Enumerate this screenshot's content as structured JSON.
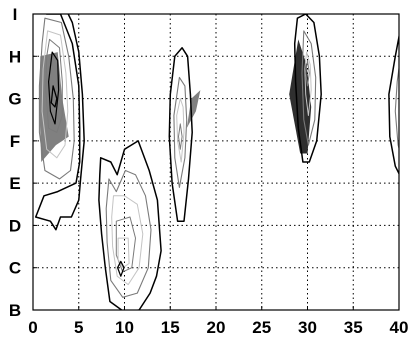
{
  "chart_data": {
    "type": "contour",
    "title": "",
    "xlabel": "",
    "ylabel": "",
    "xlim": [
      0,
      40
    ],
    "ylim": [
      "B",
      "I"
    ],
    "grid": true,
    "colors": {
      "outer": "#000000",
      "mid": "#7a7a7a",
      "light": "#c4c4c4",
      "fill_mid": "#808080",
      "fill_dark": "#2f2f2f"
    },
    "x_ticks": [
      {
        "value": 0,
        "label": "0"
      },
      {
        "value": 5,
        "label": "5"
      },
      {
        "value": 10,
        "label": "10"
      },
      {
        "value": 15,
        "label": "15"
      },
      {
        "value": 20,
        "label": "20"
      },
      {
        "value": 25,
        "label": "25"
      },
      {
        "value": 30,
        "label": "30"
      },
      {
        "value": 35,
        "label": "35"
      },
      {
        "value": 40,
        "label": "40"
      }
    ],
    "y_ticks": [
      {
        "value": 0,
        "label": "B"
      },
      {
        "value": 1,
        "label": "C"
      },
      {
        "value": 2,
        "label": "D"
      },
      {
        "value": 3,
        "label": "E"
      },
      {
        "value": 4,
        "label": "F"
      },
      {
        "value": 5,
        "label": "G"
      },
      {
        "value": 6,
        "label": "H"
      },
      {
        "value": 7,
        "label": "I"
      }
    ],
    "fills": [
      {
        "name": "region-1-fill",
        "tone": "fill_mid",
        "points": [
          [
            0.8,
            6.0
          ],
          [
            2.7,
            6.1
          ],
          [
            3.2,
            5.0
          ],
          [
            3.9,
            4.1
          ],
          [
            2.5,
            3.9
          ],
          [
            0.9,
            3.5
          ],
          [
            0.7,
            4.8
          ]
        ]
      },
      {
        "name": "region-2-fill",
        "tone": "fill_mid",
        "points": [
          [
            17.3,
            5.0
          ],
          [
            18.3,
            5.2
          ],
          [
            17.8,
            4.7
          ],
          [
            16.8,
            4.3
          ]
        ]
      },
      {
        "name": "region-3-fill",
        "tone": "fill_dark",
        "points": [
          [
            29.0,
            6.4
          ],
          [
            29.9,
            5.8
          ],
          [
            30.4,
            4.8
          ],
          [
            30.0,
            3.7
          ],
          [
            29.2,
            3.7
          ],
          [
            28.0,
            5.1
          ]
        ]
      }
    ],
    "contours": [
      {
        "name": "region-1-outer",
        "tone": "outer",
        "width": 1.5,
        "points": [
          [
            1.5,
            7.0
          ],
          [
            3.0,
            7.0
          ],
          [
            4.3,
            6.3
          ],
          [
            5.0,
            5.3
          ],
          [
            5.1,
            4.3
          ],
          [
            5.1,
            3.5
          ],
          [
            4.7,
            3.0
          ],
          [
            2.7,
            2.8
          ],
          [
            1.2,
            2.7
          ],
          [
            0.3,
            2.2
          ],
          [
            1.9,
            2.1
          ],
          [
            2.5,
            1.9
          ],
          [
            3.0,
            2.2
          ],
          [
            4.2,
            2.2
          ],
          [
            5.0,
            2.6
          ],
          [
            5.2,
            3.1
          ],
          [
            5.6,
            4.0
          ],
          [
            5.4,
            5.1
          ],
          [
            5.0,
            6.1
          ],
          [
            4.3,
            6.8
          ],
          [
            3.4,
            7.2
          ]
        ]
      },
      {
        "name": "region-1-mid-1",
        "tone": "mid",
        "width": 1.1,
        "points": [
          [
            1.3,
            6.9
          ],
          [
            3.1,
            6.8
          ],
          [
            3.9,
            6.0
          ],
          [
            4.4,
            5.0
          ],
          [
            4.5,
            4.0
          ],
          [
            4.1,
            3.3
          ],
          [
            2.9,
            3.1
          ],
          [
            1.3,
            3.3
          ],
          [
            0.7,
            4.2
          ],
          [
            0.7,
            5.3
          ],
          [
            1.0,
            6.3
          ]
        ]
      },
      {
        "name": "region-1-light-1",
        "tone": "light",
        "width": 1.0,
        "points": [
          [
            1.6,
            6.6
          ],
          [
            3.0,
            6.5
          ],
          [
            3.6,
            5.6
          ],
          [
            3.8,
            4.7
          ],
          [
            3.5,
            3.9
          ],
          [
            2.6,
            3.6
          ],
          [
            1.5,
            3.8
          ],
          [
            1.0,
            4.7
          ],
          [
            1.1,
            5.7
          ]
        ]
      },
      {
        "name": "region-1-mid-2",
        "tone": "mid",
        "width": 1.0,
        "points": [
          [
            1.8,
            6.4
          ],
          [
            2.9,
            6.2
          ],
          [
            3.2,
            5.4
          ],
          [
            3.2,
            4.6
          ],
          [
            2.6,
            4.2
          ],
          [
            1.7,
            4.3
          ],
          [
            1.4,
            5.2
          ],
          [
            1.5,
            6.0
          ]
        ]
      },
      {
        "name": "region-1-inner",
        "tone": "outer",
        "width": 1.2,
        "points": [
          [
            2.1,
            6.1
          ],
          [
            2.7,
            5.9
          ],
          [
            2.8,
            5.2
          ],
          [
            2.4,
            4.4
          ],
          [
            1.9,
            4.7
          ],
          [
            1.7,
            5.4
          ]
        ]
      },
      {
        "name": "region-1-core",
        "tone": "outer",
        "width": 1.3,
        "points": [
          [
            2.2,
            5.3
          ],
          [
            2.6,
            5.0
          ],
          [
            2.4,
            4.8
          ],
          [
            2.0,
            4.9
          ]
        ]
      },
      {
        "name": "region-2-outer",
        "tone": "outer",
        "width": 1.5,
        "points": [
          [
            7.4,
            3.6
          ],
          [
            8.5,
            3.5
          ],
          [
            9.2,
            3.2
          ],
          [
            10.0,
            3.8
          ],
          [
            11.5,
            4.0
          ],
          [
            12.7,
            3.3
          ],
          [
            13.6,
            2.6
          ],
          [
            14.0,
            1.4
          ],
          [
            13.5,
            0.8
          ],
          [
            12.8,
            0.4
          ],
          [
            11.6,
            0.0
          ],
          [
            10.0,
            -0.05
          ],
          [
            8.4,
            0.2
          ],
          [
            7.9,
            1.0
          ],
          [
            7.5,
            1.8
          ],
          [
            7.2,
            2.6
          ],
          [
            7.3,
            3.2
          ]
        ]
      },
      {
        "name": "region-2-mid-1",
        "tone": "mid",
        "width": 1.1,
        "points": [
          [
            8.3,
            3.1
          ],
          [
            9.1,
            2.8
          ],
          [
            10.1,
            3.3
          ],
          [
            11.2,
            3.2
          ],
          [
            12.3,
            2.7
          ],
          [
            12.9,
            1.9
          ],
          [
            12.6,
            1.0
          ],
          [
            11.4,
            0.4
          ],
          [
            9.8,
            0.3
          ],
          [
            8.5,
            0.7
          ],
          [
            8.1,
            1.6
          ],
          [
            8.0,
            2.4
          ]
        ]
      },
      {
        "name": "region-2-light-1",
        "tone": "light",
        "width": 1.0,
        "points": [
          [
            8.8,
            2.7
          ],
          [
            10.0,
            2.7
          ],
          [
            11.4,
            2.5
          ],
          [
            12.0,
            1.8
          ],
          [
            11.6,
            1.0
          ],
          [
            10.4,
            0.6
          ],
          [
            9.2,
            0.8
          ],
          [
            8.7,
            1.5
          ],
          [
            8.6,
            2.2
          ]
        ]
      },
      {
        "name": "region-2-mid-2",
        "tone": "mid",
        "width": 1.0,
        "points": [
          [
            9.1,
            2.1
          ],
          [
            10.6,
            2.2
          ],
          [
            11.2,
            1.7
          ],
          [
            10.8,
            1.0
          ],
          [
            9.8,
            0.9
          ],
          [
            9.1,
            1.3
          ]
        ]
      },
      {
        "name": "region-2-light-2",
        "tone": "light",
        "width": 1.0,
        "points": [
          [
            9.3,
            1.7
          ],
          [
            10.4,
            1.7
          ],
          [
            10.5,
            1.1
          ],
          [
            9.8,
            1.0
          ],
          [
            9.3,
            1.2
          ]
        ]
      },
      {
        "name": "region-2-core",
        "tone": "outer",
        "width": 1.3,
        "points": [
          [
            9.6,
            1.15
          ],
          [
            9.95,
            1.0
          ],
          [
            9.6,
            0.8
          ],
          [
            9.25,
            1.0
          ]
        ]
      },
      {
        "name": "region-3-outer",
        "tone": "outer",
        "width": 1.5,
        "points": [
          [
            15.5,
            6.0
          ],
          [
            16.3,
            6.2
          ],
          [
            16.9,
            6.0
          ],
          [
            17.2,
            5.1
          ],
          [
            17.4,
            4.2
          ],
          [
            17.0,
            3.1
          ],
          [
            16.5,
            2.1
          ],
          [
            15.8,
            2.1
          ],
          [
            15.2,
            3.0
          ],
          [
            14.9,
            4.1
          ],
          [
            15.0,
            5.1
          ]
        ]
      },
      {
        "name": "region-3-mid-1",
        "tone": "mid",
        "width": 1.1,
        "points": [
          [
            16.0,
            5.5
          ],
          [
            16.6,
            5.3
          ],
          [
            16.8,
            4.5
          ],
          [
            16.6,
            3.6
          ],
          [
            16.0,
            2.9
          ],
          [
            15.5,
            3.6
          ],
          [
            15.4,
            4.6
          ]
        ]
      },
      {
        "name": "region-3-light-1",
        "tone": "light",
        "width": 1.0,
        "points": [
          [
            16.1,
            5.0
          ],
          [
            16.4,
            4.8
          ],
          [
            16.5,
            4.2
          ],
          [
            16.2,
            3.5
          ],
          [
            15.8,
            4.0
          ],
          [
            15.7,
            4.6
          ]
        ]
      },
      {
        "name": "region-3-core",
        "tone": "mid",
        "width": 1.0,
        "points": [
          [
            16.1,
            4.4
          ],
          [
            16.3,
            4.1
          ],
          [
            16.1,
            3.8
          ],
          [
            15.9,
            4.1
          ]
        ]
      },
      {
        "name": "region-4-outer",
        "tone": "outer",
        "width": 1.5,
        "points": [
          [
            28.9,
            6.9
          ],
          [
            29.8,
            7.0
          ],
          [
            30.7,
            6.8
          ],
          [
            31.3,
            6.0
          ],
          [
            31.5,
            5.1
          ],
          [
            31.0,
            4.0
          ],
          [
            30.2,
            3.5
          ],
          [
            29.5,
            3.5
          ],
          [
            29.0,
            4.3
          ],
          [
            28.7,
            5.4
          ],
          [
            28.6,
            6.3
          ]
        ]
      },
      {
        "name": "region-4-mid-1",
        "tone": "mid",
        "width": 1.1,
        "points": [
          [
            29.6,
            6.6
          ],
          [
            30.4,
            6.3
          ],
          [
            30.9,
            5.5
          ],
          [
            30.8,
            4.5
          ],
          [
            30.1,
            3.9
          ],
          [
            29.6,
            4.5
          ],
          [
            29.4,
            5.6
          ]
        ]
      },
      {
        "name": "region-4-light-1",
        "tone": "light",
        "width": 1.0,
        "points": [
          [
            29.9,
            6.1
          ],
          [
            30.3,
            5.8
          ],
          [
            30.4,
            5.2
          ],
          [
            30.1,
            4.6
          ],
          [
            29.8,
            5.1
          ],
          [
            29.7,
            5.7
          ]
        ]
      },
      {
        "name": "region-4-core",
        "tone": "mid",
        "width": 1.0,
        "points": [
          [
            30.0,
            5.9
          ],
          [
            30.2,
            5.6
          ],
          [
            30.0,
            5.3
          ],
          [
            29.8,
            5.6
          ]
        ]
      },
      {
        "name": "region-5-outer",
        "tone": "outer",
        "width": 1.5,
        "points": [
          [
            40.3,
            6.8
          ],
          [
            39.6,
            6.0
          ],
          [
            38.9,
            5.1
          ],
          [
            39.0,
            4.1
          ],
          [
            39.6,
            3.4
          ],
          [
            40.3,
            3.1
          ]
        ]
      },
      {
        "name": "region-5-mid-1",
        "tone": "mid",
        "width": 1.1,
        "points": [
          [
            40.3,
            6.2
          ],
          [
            39.8,
            5.4
          ],
          [
            39.6,
            4.7
          ],
          [
            39.9,
            3.9
          ],
          [
            40.3,
            3.6
          ]
        ]
      },
      {
        "name": "region-5-light-1",
        "tone": "light",
        "width": 1.0,
        "points": [
          [
            40.3,
            5.6
          ],
          [
            40.0,
            5.0
          ],
          [
            40.1,
            4.4
          ],
          [
            40.3,
            4.1
          ]
        ]
      }
    ]
  }
}
